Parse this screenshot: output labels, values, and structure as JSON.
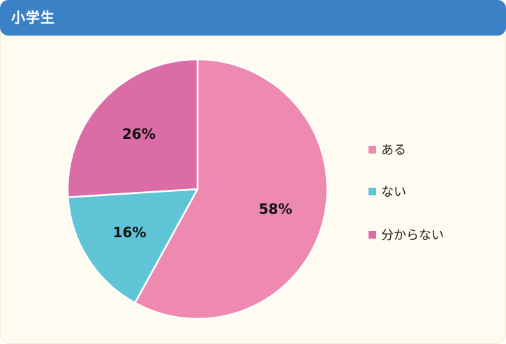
{
  "header": {
    "title": "小学生"
  },
  "chart_data": {
    "type": "pie",
    "categories": [
      "ある",
      "ない",
      "分からない"
    ],
    "values": [
      58,
      16,
      26
    ],
    "value_labels": [
      "58%",
      "16%",
      "26%"
    ],
    "colors": [
      "#ee89b0",
      "#5ec4d6",
      "#da6ca6"
    ],
    "start_angle_deg": 0,
    "direction": "clockwise",
    "legend": "right"
  }
}
